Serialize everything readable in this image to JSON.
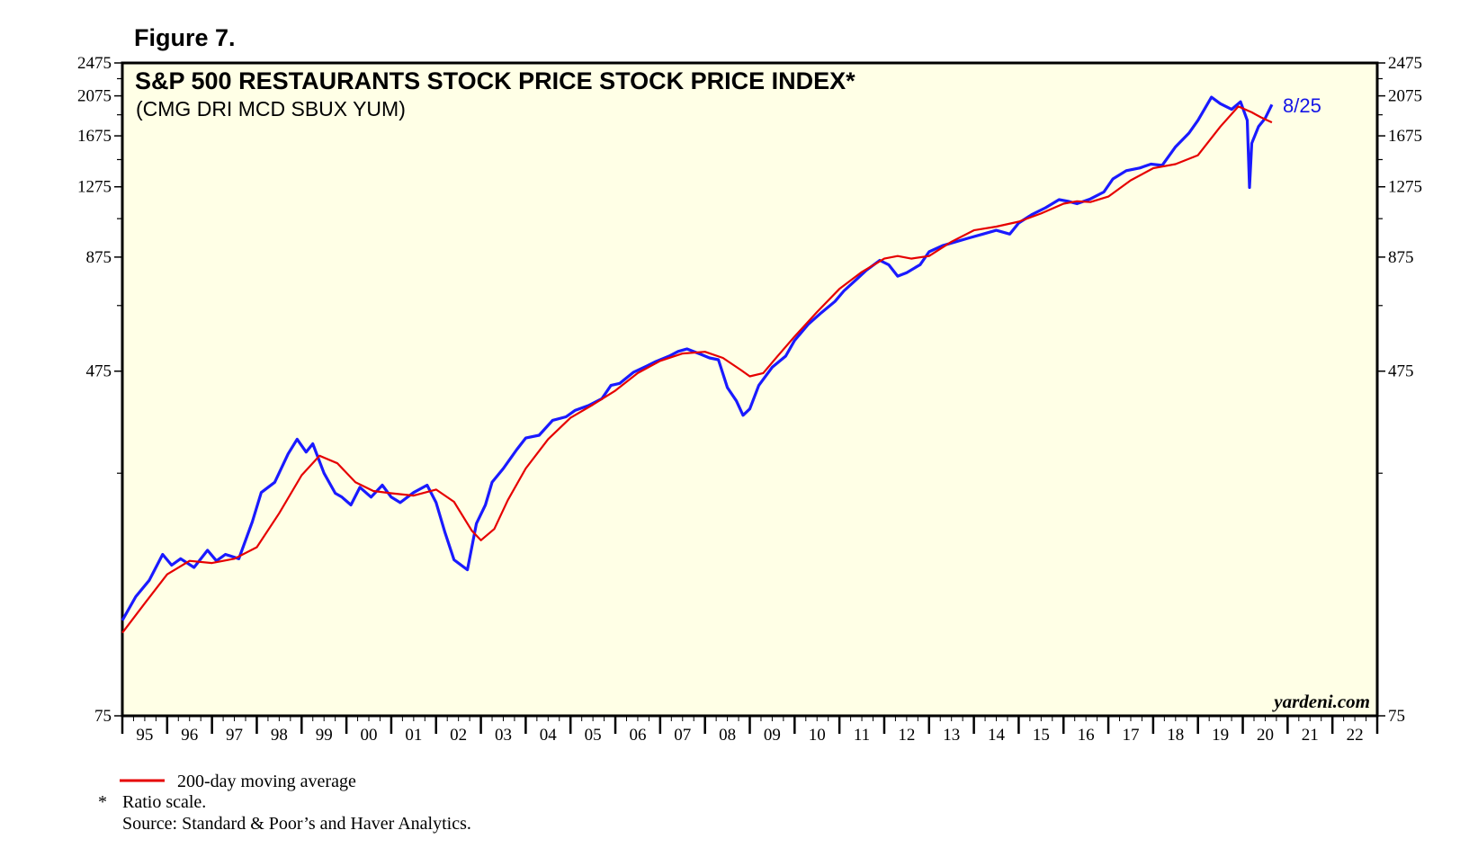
{
  "figure_label": "Figure 7.",
  "footnotes": {
    "marker": "*",
    "ratio_note": "Ratio scale.",
    "source": "Source: Standard & Poor’s and Haver Analytics."
  },
  "colors": {
    "plot_background": "#ffffe6",
    "price_line": "#1a1aff",
    "moving_average": "#e60000",
    "end_label": "#1414e6"
  },
  "chart_data": {
    "type": "line",
    "title": "S&P 500 RESTAURANTS STOCK PRICE STOCK PRICE INDEX*",
    "subtitle": "(CMG DRI MCD SBUX YUM)",
    "y_scale": "log",
    "ylim": [
      75,
      2475
    ],
    "xlim": [
      1995,
      2023
    ],
    "y_ticks": [
      75,
      475,
      875,
      1275,
      1675,
      2075,
      2475
    ],
    "y_tick_labels": [
      "75",
      "475",
      "875",
      "1275",
      "1675",
      "2075",
      "2475"
    ],
    "x_tick_labels": [
      "95",
      "96",
      "97",
      "98",
      "99",
      "00",
      "01",
      "02",
      "03",
      "04",
      "05",
      "06",
      "07",
      "08",
      "09",
      "10",
      "11",
      "12",
      "13",
      "14",
      "15",
      "16",
      "17",
      "18",
      "19",
      "20",
      "21",
      "22"
    ],
    "grid": false,
    "legend_position": "below-left",
    "end_label": "8/25",
    "watermark": "yardeni.com",
    "series": [
      {
        "name": "",
        "x": [
          1995.0,
          1995.3,
          1995.6,
          1995.9,
          1996.1,
          1996.3,
          1996.6,
          1996.9,
          1997.1,
          1997.3,
          1997.6,
          1997.9,
          1998.1,
          1998.4,
          1998.7,
          1998.9,
          1999.1,
          1999.25,
          1999.5,
          1999.75,
          1999.9,
          2000.1,
          2000.3,
          2000.55,
          2000.8,
          2001.0,
          2001.2,
          2001.5,
          2001.8,
          2002.0,
          2002.2,
          2002.4,
          2002.7,
          2002.9,
          2003.1,
          2003.25,
          2003.5,
          2003.8,
          2004.0,
          2004.3,
          2004.6,
          2004.9,
          2005.1,
          2005.4,
          2005.7,
          2005.9,
          2006.1,
          2006.4,
          2006.7,
          2006.9,
          2007.2,
          2007.4,
          2007.6,
          2007.9,
          2008.1,
          2008.3,
          2008.5,
          2008.7,
          2008.85,
          2009.0,
          2009.2,
          2009.5,
          2009.8,
          2010.0,
          2010.3,
          2010.6,
          2010.9,
          2011.1,
          2011.4,
          2011.6,
          2011.9,
          2012.1,
          2012.3,
          2012.5,
          2012.8,
          2013.0,
          2013.3,
          2013.6,
          2013.9,
          2014.2,
          2014.5,
          2014.8,
          2015.0,
          2015.3,
          2015.6,
          2015.9,
          2016.1,
          2016.3,
          2016.6,
          2016.9,
          2017.1,
          2017.4,
          2017.7,
          2017.95,
          2018.2,
          2018.5,
          2018.8,
          2019.0,
          2019.3,
          2019.5,
          2019.75,
          2019.95,
          2020.1,
          2020.15,
          2020.2,
          2020.35,
          2020.5,
          2020.65
        ],
        "values": [
          125,
          142,
          155,
          178,
          168,
          174,
          166,
          182,
          172,
          178,
          174,
          212,
          248,
          262,
          305,
          330,
          308,
          322,
          275,
          247,
          242,
          232,
          255,
          242,
          258,
          242,
          235,
          248,
          258,
          235,
          200,
          173,
          164,
          210,
          232,
          262,
          282,
          312,
          332,
          337,
          365,
          372,
          385,
          395,
          410,
          440,
          445,
          472,
          488,
          500,
          515,
          528,
          535,
          520,
          510,
          505,
          435,
          405,
          375,
          388,
          440,
          485,
          515,
          560,
          610,
          650,
          690,
          730,
          780,
          815,
          860,
          840,
          790,
          805,
          840,
          900,
          930,
          950,
          970,
          990,
          1010,
          990,
          1050,
          1100,
          1140,
          1190,
          1180,
          1165,
          1195,
          1240,
          1330,
          1390,
          1410,
          1440,
          1430,
          1580,
          1700,
          1820,
          2060,
          1990,
          1930,
          2010,
          1820,
          1270,
          1610,
          1760,
          1840,
          1980
        ]
      },
      {
        "name": "200-day moving average",
        "x": [
          1995.0,
          1995.5,
          1996.0,
          1996.5,
          1997.0,
          1997.5,
          1998.0,
          1998.5,
          1999.0,
          1999.4,
          1999.8,
          2000.2,
          2000.6,
          2001.0,
          2001.5,
          2002.0,
          2002.4,
          2002.8,
          2003.0,
          2003.3,
          2003.6,
          2004.0,
          2004.5,
          2005.0,
          2005.5,
          2006.0,
          2006.5,
          2007.0,
          2007.5,
          2008.0,
          2008.4,
          2008.8,
          2009.0,
          2009.3,
          2009.6,
          2010.0,
          2010.5,
          2011.0,
          2011.5,
          2012.0,
          2012.3,
          2012.6,
          2013.0,
          2013.5,
          2014.0,
          2014.5,
          2015.0,
          2015.5,
          2016.0,
          2016.3,
          2016.6,
          2017.0,
          2017.5,
          2018.0,
          2018.5,
          2019.0,
          2019.5,
          2019.9,
          2020.2,
          2020.4,
          2020.65
        ],
        "values": [
          117,
          137,
          160,
          172,
          170,
          174,
          185,
          222,
          272,
          302,
          290,
          262,
          250,
          247,
          244,
          252,
          236,
          202,
          192,
          204,
          238,
          282,
          330,
          370,
          397,
          428,
          470,
          502,
          522,
          527,
          510,
          478,
          462,
          470,
          512,
          572,
          652,
          738,
          808,
          868,
          880,
          868,
          880,
          950,
          1010,
          1030,
          1058,
          1105,
          1165,
          1180,
          1175,
          1210,
          1320,
          1408,
          1440,
          1510,
          1760,
          1960,
          1900,
          1850,
          1800
        ]
      }
    ]
  }
}
